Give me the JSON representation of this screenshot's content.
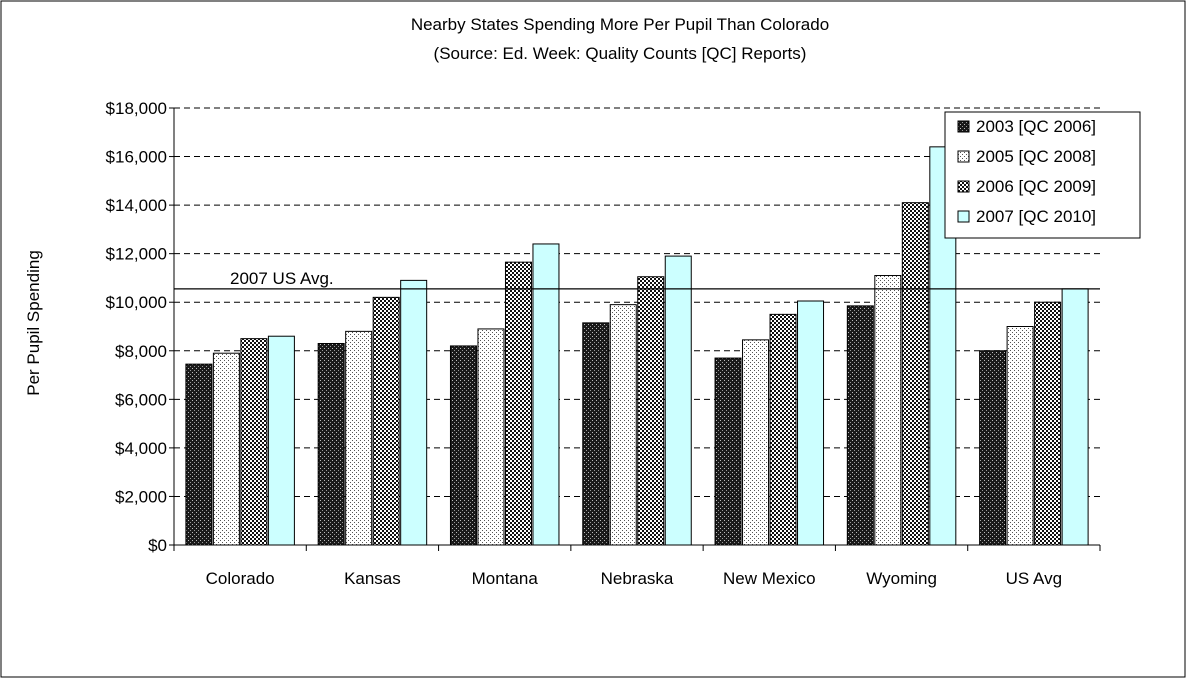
{
  "chart_data": {
    "type": "bar",
    "title": "Nearby States Spending More Per Pupil Than Colorado",
    "subtitle": "(Source: Ed. Week: Quality Counts [QC] Reports)",
    "xlabel": "",
    "ylabel": "Per Pupil Spending",
    "ylim": [
      0,
      18000
    ],
    "y_ticks": [
      0,
      2000,
      4000,
      6000,
      8000,
      10000,
      12000,
      14000,
      16000,
      18000
    ],
    "y_tick_labels": [
      "$0",
      "$2,000",
      "$4,000",
      "$6,000",
      "$8,000",
      "$10,000",
      "$12,000",
      "$14,000",
      "$16,000",
      "$18,000"
    ],
    "grid": true,
    "legend_position": "top-right",
    "categories": [
      "Colorado",
      "Kansas",
      "Montana",
      "Nebraska",
      "New Mexico",
      "Wyoming",
      "US Avg"
    ],
    "series": [
      {
        "name": "2003 [QC 2006]",
        "pattern": "dark-grid",
        "values": [
          7450,
          8300,
          8200,
          9150,
          7700,
          9850,
          8000
        ]
      },
      {
        "name": "2005 [QC 2008]",
        "pattern": "light-dots",
        "values": [
          7900,
          8800,
          8900,
          9900,
          8450,
          11100,
          9000
        ]
      },
      {
        "name": "2006 [QC 2009]",
        "pattern": "checker",
        "values": [
          8500,
          10200,
          11650,
          11050,
          9500,
          14100,
          10000
        ]
      },
      {
        "name": "2007 [QC 2010]",
        "pattern": "solid",
        "color": "#ccffff",
        "values": [
          8600,
          10900,
          12400,
          11900,
          10050,
          16400,
          10550
        ]
      }
    ],
    "reference_line": {
      "label": "2007 US Avg.",
      "value": 10550
    }
  }
}
